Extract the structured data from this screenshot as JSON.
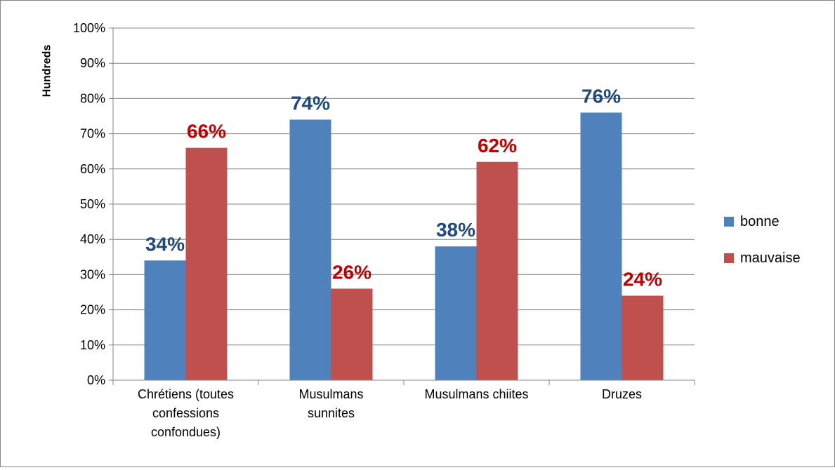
{
  "chart_data": {
    "type": "bar",
    "categories": [
      [
        "Chrétiens (toutes",
        "confessions",
        "confondues)"
      ],
      [
        "Musulmans",
        "sunnites"
      ],
      [
        "Musulmans chiites"
      ],
      [
        "Druzes"
      ]
    ],
    "series": [
      {
        "name": "bonne",
        "values": [
          34,
          74,
          38,
          76
        ],
        "color": "#4F81BD",
        "label_color": "#1F497D"
      },
      {
        "name": "mauvaise",
        "values": [
          66,
          26,
          62,
          24
        ],
        "color": "#C0504D",
        "label_color": "#C00000"
      }
    ],
    "data_labels": [
      [
        "34%",
        "74%",
        "38%",
        "76%"
      ],
      [
        "66%",
        "26%",
        "62%",
        "24%"
      ]
    ],
    "ylabel": "Hundreds",
    "ylim": [
      0,
      100
    ],
    "yticks": [
      "0%",
      "10%",
      "20%",
      "30%",
      "40%",
      "50%",
      "60%",
      "70%",
      "80%",
      "90%",
      "100%"
    ],
    "grid": true,
    "legend_position": "right"
  }
}
